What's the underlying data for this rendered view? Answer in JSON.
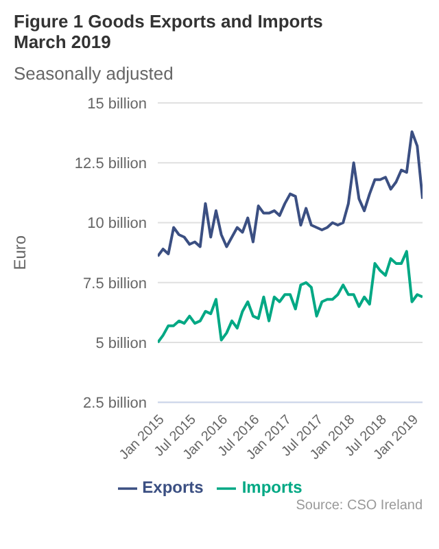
{
  "chart_data": {
    "type": "line",
    "title": "Figure 1 Goods Exports and Imports March 2019",
    "subtitle": "Seasonally adjusted",
    "ylabel": "Euro",
    "x": [
      "2015-01",
      "2015-02",
      "2015-03",
      "2015-04",
      "2015-05",
      "2015-06",
      "2015-07",
      "2015-08",
      "2015-09",
      "2015-10",
      "2015-11",
      "2015-12",
      "2016-01",
      "2016-02",
      "2016-03",
      "2016-04",
      "2016-05",
      "2016-06",
      "2016-07",
      "2016-08",
      "2016-09",
      "2016-10",
      "2016-11",
      "2016-12",
      "2017-01",
      "2017-02",
      "2017-03",
      "2017-04",
      "2017-05",
      "2017-06",
      "2017-07",
      "2017-08",
      "2017-09",
      "2017-10",
      "2017-11",
      "2017-12",
      "2018-01",
      "2018-02",
      "2018-03",
      "2018-04",
      "2018-05",
      "2018-06",
      "2018-07",
      "2018-08",
      "2018-09",
      "2018-10",
      "2018-11",
      "2018-12",
      "2019-01",
      "2019-02",
      "2019-03"
    ],
    "xlim": [
      "2015-01",
      "2019-03"
    ],
    "xticks": [
      {
        "value": "2015-01",
        "label": "Jan 2015"
      },
      {
        "value": "2015-07",
        "label": "Jul 2015"
      },
      {
        "value": "2016-01",
        "label": "Jan 2016"
      },
      {
        "value": "2016-07",
        "label": "Jul 2016"
      },
      {
        "value": "2017-01",
        "label": "Jan 2017"
      },
      {
        "value": "2017-07",
        "label": "Jul 2017"
      },
      {
        "value": "2018-01",
        "label": "Jan 2018"
      },
      {
        "value": "2018-07",
        "label": "Jul 2018"
      },
      {
        "value": "2019-01",
        "label": "Jan 2019"
      }
    ],
    "series": [
      {
        "name": "Exports",
        "color": "#3b4f82",
        "values": [
          8.6,
          8.9,
          8.7,
          9.8,
          9.5,
          9.4,
          9.1,
          9.2,
          9.0,
          10.8,
          9.4,
          10.5,
          9.5,
          9.0,
          9.4,
          9.8,
          9.6,
          10.2,
          9.2,
          10.7,
          10.4,
          10.4,
          10.5,
          10.3,
          10.8,
          11.2,
          11.1,
          9.9,
          10.6,
          9.9,
          9.8,
          9.7,
          9.8,
          10.0,
          9.9,
          10.0,
          10.8,
          12.5,
          11.0,
          10.5,
          11.2,
          11.8,
          11.8,
          11.9,
          11.4,
          11.7,
          12.2,
          12.1,
          13.8,
          13.2,
          11.0
        ]
      },
      {
        "name": "Imports",
        "color": "#00a884",
        "values": [
          5.0,
          5.3,
          5.7,
          5.7,
          5.9,
          5.8,
          6.1,
          5.8,
          5.9,
          6.3,
          6.2,
          6.8,
          5.1,
          5.4,
          5.9,
          5.6,
          6.3,
          6.7,
          6.1,
          6.0,
          6.9,
          5.9,
          6.9,
          6.7,
          7.0,
          7.0,
          6.4,
          7.4,
          7.5,
          7.3,
          6.1,
          6.7,
          6.8,
          6.8,
          7.0,
          7.4,
          7.0,
          7.0,
          6.5,
          6.9,
          6.6,
          8.3,
          8.0,
          7.8,
          8.5,
          8.3,
          8.3,
          8.8,
          6.7,
          7.0,
          6.9
        ]
      }
    ],
    "ylim": [
      2.5,
      15
    ],
    "yticks": [
      {
        "value": 2.5,
        "label": "2.5 billion"
      },
      {
        "value": 5,
        "label": "5 billion"
      },
      {
        "value": 7.5,
        "label": "7.5 billion"
      },
      {
        "value": 10,
        "label": "10 billion"
      },
      {
        "value": 12.5,
        "label": "12.5 billion"
      },
      {
        "value": 15,
        "label": "15 billion"
      }
    ],
    "grid": "y",
    "legend": "bottom",
    "line_style": "solid",
    "annotations": [
      "Source: CSO Ireland"
    ]
  }
}
